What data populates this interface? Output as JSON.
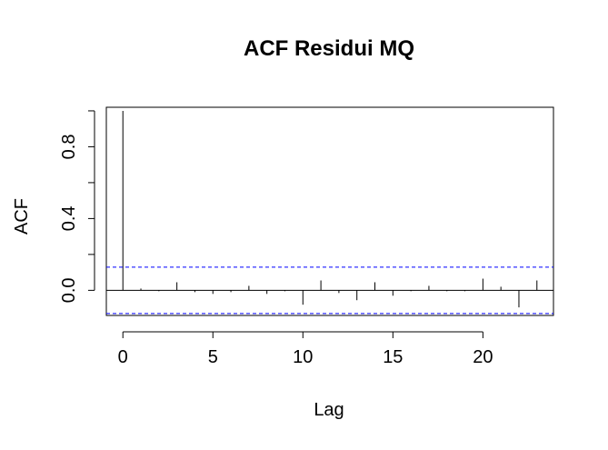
{
  "chart_data": {
    "type": "bar",
    "title": "ACF Residui MQ",
    "xlabel": "Lag",
    "ylabel": "ACF",
    "x": [
      0,
      1,
      2,
      3,
      4,
      5,
      6,
      7,
      8,
      9,
      10,
      11,
      12,
      13,
      14,
      15,
      16,
      17,
      18,
      19,
      20,
      21,
      22,
      23
    ],
    "values": [
      1.0,
      0.01,
      -0.005,
      0.045,
      -0.01,
      -0.02,
      -0.01,
      0.025,
      -0.02,
      -0.005,
      -0.08,
      0.055,
      -0.015,
      -0.055,
      0.045,
      -0.03,
      -0.005,
      0.025,
      -0.005,
      -0.005,
      0.065,
      0.02,
      -0.095,
      0.055
    ],
    "confidence_band": 0.129,
    "xlim": [
      -0.92,
      23.92
    ],
    "ylim": [
      -0.14,
      1.02
    ],
    "x_ticks": [
      0,
      5,
      10,
      15,
      20
    ],
    "y_ticks": [
      0.0,
      0.4,
      0.8
    ],
    "y_minor_ticks": [
      0.2,
      0.6,
      1.0
    ],
    "grid": false,
    "colors": {
      "bars": "#000000",
      "confidence": "#0000FF",
      "axis": "#000000"
    }
  }
}
